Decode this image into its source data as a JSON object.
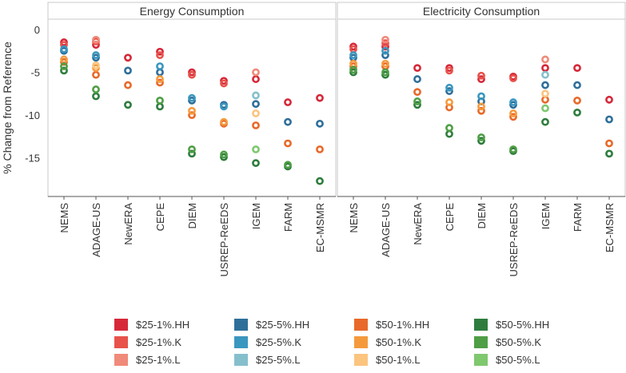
{
  "chart_data": {
    "type": "scatter",
    "ylabel": "% Change from Reference",
    "ylim": [
      -19.5,
      1.2
    ],
    "yticks": [
      0,
      -5,
      -10,
      -15
    ],
    "categories": [
      "NEMS",
      "ADAGE-US",
      "NewERA",
      "CEPE",
      "DIEM",
      "USREP-ReEDS",
      "IGEM",
      "FARM",
      "EC-MSMR"
    ],
    "series_colors": {
      "$25-1%.HH": "#d62839",
      "$25-1%.K": "#e8524a",
      "$25-1%.L": "#f08a7a",
      "$25-5%.HH": "#2e6f9a",
      "$25-5%.K": "#3a97bf",
      "$25-5%.L": "#86bfcc",
      "$50-1%.HH": "#e8692a",
      "$50-1%.K": "#f59a3c",
      "$50-1%.L": "#fbc47f",
      "$50-5%.HH": "#2e7d3e",
      "$50-5%.K": "#4e9e45",
      "$50-5%.L": "#7ec86e"
    },
    "panels": [
      {
        "title": "Energy Consumption",
        "series": [
          {
            "name": "$25-1%.HH",
            "values": [
              -1.5,
              -1.8,
              -3.3,
              -2.6,
              -5.0,
              -6.0,
              -5.8,
              -8.5,
              -8.0
            ]
          },
          {
            "name": "$25-1%.K",
            "values": [
              -1.8,
              -1.4,
              null,
              -3.0,
              -5.3,
              -6.3,
              null,
              null,
              null
            ]
          },
          {
            "name": "$25-1%.L",
            "values": [
              null,
              -1.2,
              null,
              null,
              null,
              null,
              -5.0,
              null,
              null
            ]
          },
          {
            "name": "$25-5%.HH",
            "values": [
              -2.5,
              -3.3,
              -4.8,
              -5.0,
              -8.3,
              -8.8,
              -8.7,
              -10.8,
              -11.0
            ]
          },
          {
            "name": "$25-5%.K",
            "values": [
              -2.3,
              -3.0,
              null,
              -4.3,
              -8.0,
              -9.0,
              null,
              null,
              null
            ]
          },
          {
            "name": "$25-5%.L",
            "values": [
              null,
              null,
              null,
              null,
              null,
              null,
              -7.7,
              null,
              null
            ]
          },
          {
            "name": "$50-1%.HH",
            "values": [
              -3.8,
              -5.3,
              -6.5,
              -6.2,
              -10.0,
              -11.0,
              -11.2,
              -13.3,
              -14.0
            ]
          },
          {
            "name": "$50-1%.K",
            "values": [
              -3.5,
              -4.5,
              null,
              -5.8,
              -9.5,
              -10.8,
              null,
              null,
              null
            ]
          },
          {
            "name": "$50-1%.L",
            "values": [
              null,
              -4.2,
              null,
              null,
              null,
              null,
              -9.8,
              null,
              null
            ]
          },
          {
            "name": "$50-5%.HH",
            "values": [
              -4.8,
              -7.8,
              -8.8,
              -9.0,
              -14.5,
              -14.9,
              -15.6,
              -16.0,
              -17.7
            ]
          },
          {
            "name": "$50-5%.K",
            "values": [
              -4.3,
              -7.0,
              null,
              -8.3,
              -14.0,
              -14.6,
              null,
              -15.8,
              null
            ]
          },
          {
            "name": "$50-5%.L",
            "values": [
              null,
              null,
              null,
              null,
              null,
              null,
              -14.0,
              null,
              null
            ]
          }
        ]
      },
      {
        "title": "Electricity Consumption",
        "series": [
          {
            "name": "$25-1%.HH",
            "values": [
              -2.0,
              -2.0,
              -4.5,
              -4.5,
              -5.8,
              -5.5,
              -4.5,
              -4.5,
              -8.2
            ]
          },
          {
            "name": "$25-1%.K",
            "values": [
              -2.3,
              -1.6,
              null,
              -4.8,
              -5.4,
              -5.7,
              null,
              null,
              null
            ]
          },
          {
            "name": "$25-1%.L",
            "values": [
              null,
              -1.2,
              null,
              null,
              null,
              null,
              -3.5,
              null,
              null
            ]
          },
          {
            "name": "$25-5%.HH",
            "values": [
              -3.3,
              -3.0,
              -5.8,
              -7.2,
              -8.4,
              -8.8,
              -6.5,
              -6.5,
              -10.5
            ]
          },
          {
            "name": "$25-5%.K",
            "values": [
              -3.0,
              -2.5,
              null,
              -6.8,
              -7.8,
              -8.5,
              null,
              null,
              null
            ]
          },
          {
            "name": "$25-5%.L",
            "values": [
              null,
              null,
              null,
              null,
              null,
              null,
              -5.3,
              null,
              null
            ]
          },
          {
            "name": "$50-1%.HH",
            "values": [
              -4.3,
              -4.3,
              -7.3,
              -9.1,
              -9.5,
              -10.2,
              -8.2,
              -8.3,
              -13.3
            ]
          },
          {
            "name": "$50-1%.K",
            "values": [
              -4.0,
              -4.0,
              null,
              -8.5,
              -9.0,
              -9.8,
              null,
              null,
              null
            ]
          },
          {
            "name": "$50-1%.L",
            "values": [
              null,
              null,
              null,
              null,
              null,
              null,
              -7.5,
              null,
              null
            ]
          },
          {
            "name": "$50-5%.HH",
            "values": [
              -5.0,
              -5.3,
              -8.8,
              -12.2,
              -13.0,
              -14.2,
              -10.8,
              -9.7,
              -14.5
            ]
          },
          {
            "name": "$50-5%.K",
            "values": [
              -4.7,
              -5.0,
              -8.4,
              -11.5,
              -12.6,
              -14.0,
              null,
              null,
              null
            ]
          },
          {
            "name": "$50-5%.L",
            "values": [
              null,
              null,
              null,
              null,
              null,
              null,
              -9.2,
              null,
              null
            ]
          }
        ]
      }
    ]
  },
  "legend": {
    "items": [
      {
        "label": "$25-1%.HH",
        "color": "#d62839"
      },
      {
        "label": "$25-5%.HH",
        "color": "#2e6f9a"
      },
      {
        "label": "$50-1%.HH",
        "color": "#e8692a"
      },
      {
        "label": "$50-5%.HH",
        "color": "#2e7d3e"
      },
      {
        "label": "$25-1%.K",
        "color": "#e8524a"
      },
      {
        "label": "$25-5%.K",
        "color": "#3a97bf"
      },
      {
        "label": "$50-1%.K",
        "color": "#f59a3c"
      },
      {
        "label": "$50-5%.K",
        "color": "#4e9e45"
      },
      {
        "label": "$25-1%.L",
        "color": "#f08a7a"
      },
      {
        "label": "$25-5%.L",
        "color": "#86bfcc"
      },
      {
        "label": "$50-1%.L",
        "color": "#fbc47f"
      },
      {
        "label": "$50-5%.L",
        "color": "#7ec86e"
      }
    ]
  }
}
